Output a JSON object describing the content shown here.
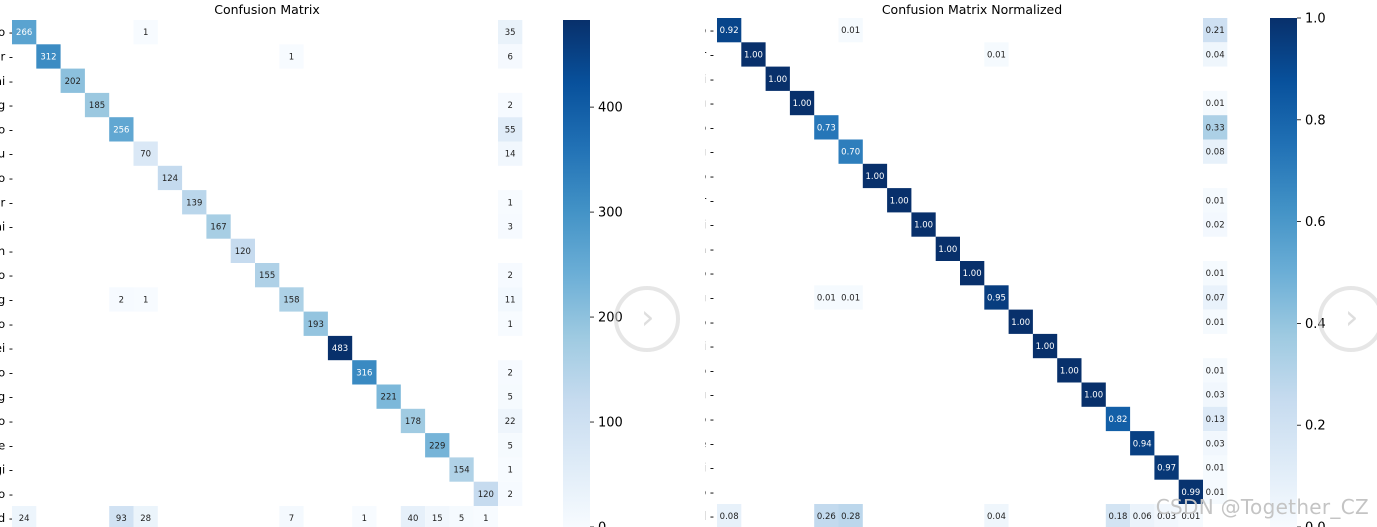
{
  "chart_data": [
    {
      "type": "heatmap",
      "title": "Confusion Matrix",
      "row_labels": [
        "o",
        "r",
        "ai",
        "g",
        "o",
        "u",
        "o",
        "r",
        "ai",
        "n",
        "o",
        "g",
        "o",
        "ei",
        "o",
        "g",
        "o",
        "e",
        "gi",
        "o",
        "d"
      ],
      "colorbar_ticks": [
        0,
        100,
        200,
        300,
        400
      ],
      "colorbar_range": [
        0,
        483
      ],
      "cells": [
        [
          0,
          0,
          266
        ],
        [
          0,
          5,
          1
        ],
        [
          0,
          20,
          35
        ],
        [
          1,
          1,
          312
        ],
        [
          1,
          11,
          1
        ],
        [
          1,
          20,
          6
        ],
        [
          2,
          2,
          202
        ],
        [
          3,
          3,
          185
        ],
        [
          3,
          20,
          2
        ],
        [
          4,
          4,
          256
        ],
        [
          4,
          20,
          55
        ],
        [
          5,
          5,
          70
        ],
        [
          5,
          20,
          14
        ],
        [
          6,
          6,
          124
        ],
        [
          7,
          7,
          139
        ],
        [
          7,
          20,
          1
        ],
        [
          8,
          8,
          167
        ],
        [
          8,
          20,
          3
        ],
        [
          9,
          9,
          120
        ],
        [
          10,
          10,
          155
        ],
        [
          10,
          20,
          2
        ],
        [
          11,
          4,
          2
        ],
        [
          11,
          5,
          1
        ],
        [
          11,
          11,
          158
        ],
        [
          11,
          20,
          11
        ],
        [
          12,
          12,
          193
        ],
        [
          12,
          20,
          1
        ],
        [
          13,
          13,
          483
        ],
        [
          14,
          14,
          316
        ],
        [
          14,
          20,
          2
        ],
        [
          15,
          15,
          221
        ],
        [
          15,
          20,
          5
        ],
        [
          16,
          16,
          178
        ],
        [
          16,
          20,
          22
        ],
        [
          17,
          17,
          229
        ],
        [
          17,
          20,
          5
        ],
        [
          18,
          18,
          154
        ],
        [
          18,
          20,
          1
        ],
        [
          19,
          19,
          120
        ],
        [
          19,
          20,
          2
        ],
        [
          20,
          0,
          24
        ],
        [
          20,
          4,
          93
        ],
        [
          20,
          5,
          28
        ],
        [
          20,
          11,
          7
        ],
        [
          20,
          14,
          1
        ],
        [
          20,
          16,
          40
        ],
        [
          20,
          17,
          15
        ],
        [
          20,
          18,
          5
        ],
        [
          20,
          19,
          1
        ]
      ]
    },
    {
      "type": "heatmap",
      "title": "Confusion Matrix Normalized",
      "row_labels": [
        "o",
        "r",
        "ai",
        "g",
        "o",
        "u",
        "o",
        "r",
        "ai",
        "n",
        "o",
        "g",
        "o",
        "ei",
        "o",
        "g",
        "o",
        "e",
        "gi",
        "o",
        "d"
      ],
      "colorbar_ticks": [
        0.0,
        0.2,
        0.4,
        0.6,
        0.8,
        1.0
      ],
      "colorbar_range": [
        0,
        1
      ],
      "cells": [
        [
          0,
          0,
          0.92
        ],
        [
          0,
          5,
          0.01
        ],
        [
          0,
          20,
          0.21
        ],
        [
          1,
          1,
          1.0
        ],
        [
          1,
          11,
          0.01
        ],
        [
          1,
          20,
          0.04
        ],
        [
          2,
          2,
          1.0
        ],
        [
          3,
          3,
          1.0
        ],
        [
          3,
          20,
          0.01
        ],
        [
          4,
          4,
          0.73
        ],
        [
          4,
          20,
          0.33
        ],
        [
          5,
          5,
          0.7
        ],
        [
          5,
          20,
          0.08
        ],
        [
          6,
          6,
          1.0
        ],
        [
          7,
          7,
          1.0
        ],
        [
          7,
          20,
          0.01
        ],
        [
          8,
          8,
          1.0
        ],
        [
          8,
          20,
          0.02
        ],
        [
          9,
          9,
          1.0
        ],
        [
          10,
          10,
          1.0
        ],
        [
          10,
          20,
          0.01
        ],
        [
          11,
          4,
          0.01
        ],
        [
          11,
          5,
          0.01
        ],
        [
          11,
          11,
          0.95
        ],
        [
          11,
          20,
          0.07
        ],
        [
          12,
          12,
          1.0
        ],
        [
          12,
          20,
          0.01
        ],
        [
          13,
          13,
          1.0
        ],
        [
          14,
          14,
          1.0
        ],
        [
          14,
          20,
          0.01
        ],
        [
          15,
          15,
          1.0
        ],
        [
          15,
          20,
          0.03
        ],
        [
          16,
          16,
          0.82
        ],
        [
          16,
          20,
          0.13
        ],
        [
          17,
          17,
          0.94
        ],
        [
          17,
          20,
          0.03
        ],
        [
          18,
          18,
          0.97
        ],
        [
          18,
          20,
          0.01
        ],
        [
          19,
          19,
          0.99
        ],
        [
          19,
          20,
          0.01
        ],
        [
          20,
          0,
          0.08
        ],
        [
          20,
          4,
          0.26
        ],
        [
          20,
          5,
          0.28
        ],
        [
          20,
          11,
          0.04
        ],
        [
          20,
          16,
          0.18
        ],
        [
          20,
          17,
          0.06
        ],
        [
          20,
          18,
          0.03
        ],
        [
          20,
          19,
          0.01
        ]
      ]
    }
  ],
  "watermark": "CSDN @Together_CZ",
  "icons": {
    "nav_left": "chevron-right-circle-icon",
    "nav_right": "chevron-right-circle-icon"
  },
  "colors": {
    "cmap_low": "#f7fbff",
    "cmap_high": "#08306b",
    "watermark": "#c4c4c4"
  }
}
